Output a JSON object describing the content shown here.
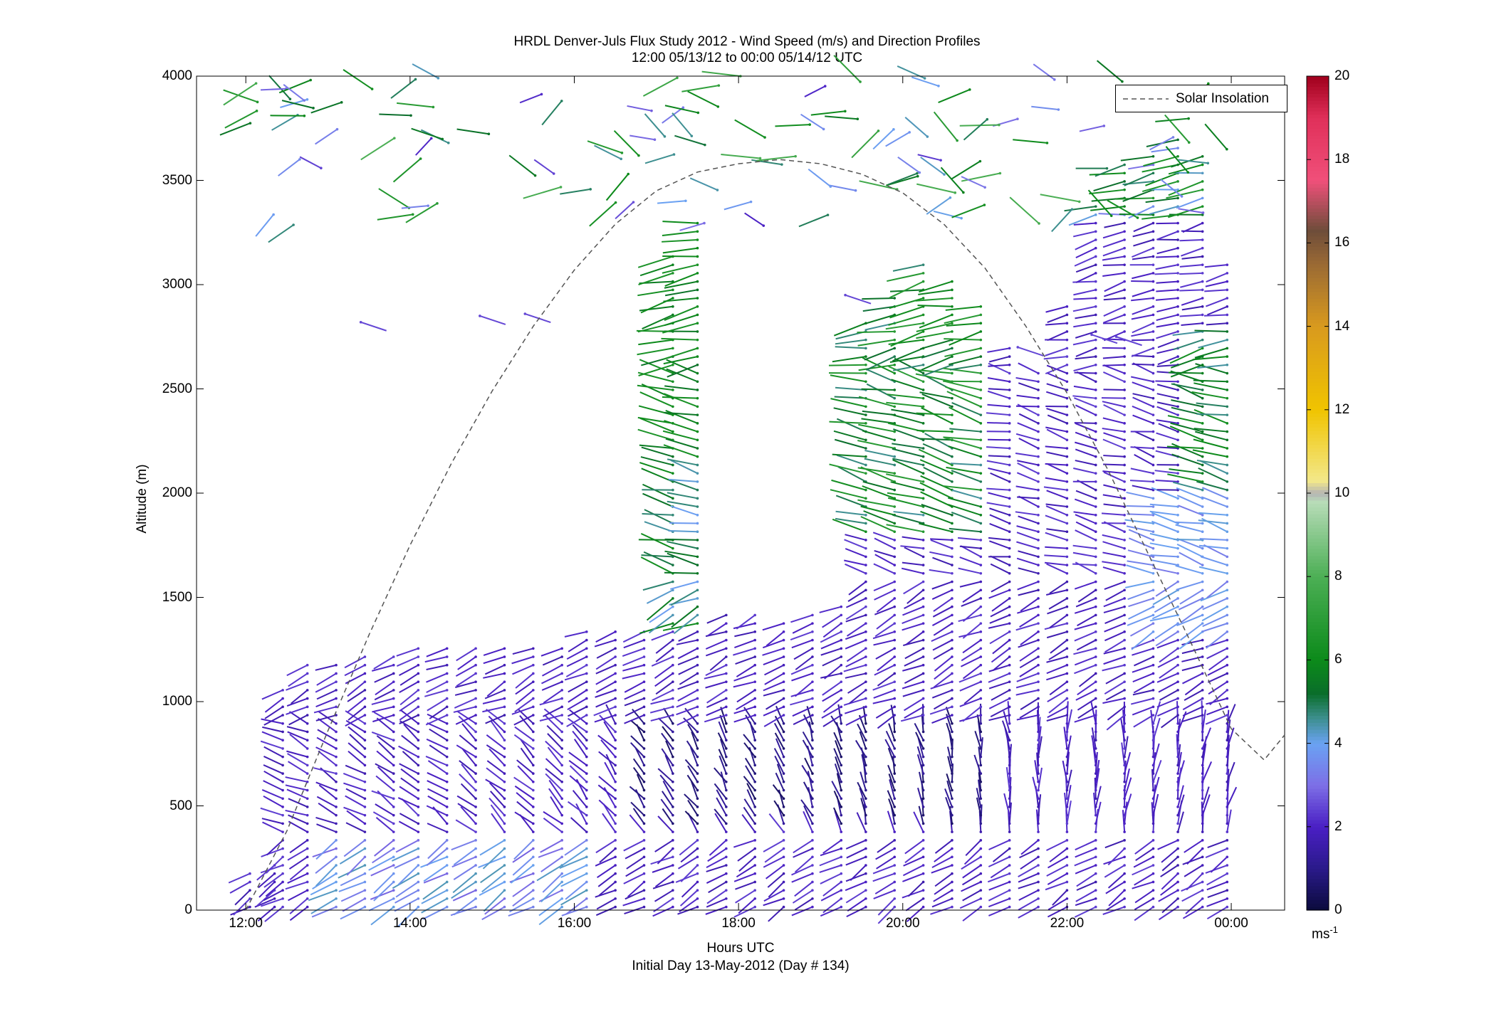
{
  "figure": {
    "title_line1": "HRDL Denver-Juls Flux Study 2012 - Wind Speed (m/s) and Direction Profiles",
    "title_line2": "12:00 05/13/12 to 00:00 05/14/12  UTC",
    "xlabel": "Hours UTC",
    "xlabel2": "Initial Day 13-May-2012 (Day # 134)",
    "ylabel": "Altitude (m)",
    "colorbar_unit": "ms",
    "colorbar_unit_exp": "-1"
  },
  "legend": {
    "label": "Solar Insolation",
    "position": "top-right"
  },
  "chart_data": {
    "type": "line",
    "description_type": "wind-barb profile plot with colorbar",
    "x_axis": {
      "label": "Hours UTC",
      "range_hours": [
        11.4,
        24.65
      ],
      "ticks": [
        12,
        14,
        16,
        18,
        20,
        22,
        24
      ],
      "tick_labels": [
        "12:00",
        "14:00",
        "16:00",
        "18:00",
        "20:00",
        "22:00",
        "00:00"
      ]
    },
    "y_axis": {
      "label": "Altitude (m)",
      "range": [
        0,
        4000
      ],
      "ticks": [
        0,
        500,
        1000,
        1500,
        2000,
        2500,
        3000,
        3500,
        4000
      ],
      "tick_labels": [
        "0",
        "500",
        "1000",
        "1500",
        "2000",
        "2500",
        "3000",
        "3500",
        "4000"
      ]
    },
    "colorbar": {
      "range": [
        0,
        20
      ],
      "ticks": [
        0,
        2,
        4,
        6,
        8,
        10,
        12,
        14,
        16,
        18,
        20
      ],
      "tick_labels": [
        "0",
        "2",
        "4",
        "6",
        "8",
        "10",
        "12",
        "14",
        "16",
        "18",
        "20"
      ],
      "unit": "ms-1",
      "stops": [
        {
          "v": 0,
          "color": "#0b0b3c"
        },
        {
          "v": 1,
          "color": "#2a1a8a"
        },
        {
          "v": 2,
          "color": "#4a1fc4"
        },
        {
          "v": 3,
          "color": "#7d6fe6"
        },
        {
          "v": 4,
          "color": "#6aa2f2"
        },
        {
          "v": 4.6,
          "color": "#3d8f8f"
        },
        {
          "v": 5.2,
          "color": "#0a6e2a"
        },
        {
          "v": 6,
          "color": "#0c8a1a"
        },
        {
          "v": 8,
          "color": "#4caf55"
        },
        {
          "v": 9.8,
          "color": "#b8dcb8"
        },
        {
          "v": 10,
          "color": "#b4b4b4"
        },
        {
          "v": 10.3,
          "color": "#f3e88a"
        },
        {
          "v": 12,
          "color": "#f0c400"
        },
        {
          "v": 14,
          "color": "#d99a1e"
        },
        {
          "v": 15.5,
          "color": "#9a6a34"
        },
        {
          "v": 16.3,
          "color": "#6e4d3a"
        },
        {
          "v": 17.5,
          "color": "#f0507a"
        },
        {
          "v": 19,
          "color": "#e0305a"
        },
        {
          "v": 20,
          "color": "#a0001c"
        }
      ]
    },
    "series": [
      {
        "name": "Solar Insolation",
        "style": "dashed",
        "color": "#555555",
        "x": [
          12.0,
          12.5,
          13.0,
          13.5,
          14.0,
          14.5,
          15.0,
          15.5,
          16.0,
          16.5,
          17.0,
          17.5,
          18.0,
          18.5,
          19.0,
          19.5,
          20.0,
          20.5,
          21.0,
          21.5,
          22.0,
          22.5,
          23.0,
          23.5,
          24.0,
          24.4,
          24.65
        ],
        "y": [
          0,
          380,
          860,
          1320,
          1750,
          2140,
          2490,
          2800,
          3070,
          3290,
          3450,
          3540,
          3580,
          3600,
          3580,
          3530,
          3440,
          3290,
          3080,
          2800,
          2480,
          2110,
          1700,
          1290,
          870,
          720,
          840
        ]
      }
    ],
    "profiles": [
      {
        "time": 12.05,
        "top": 180
      },
      {
        "time": 12.35,
        "top": 250
      },
      {
        "time": 12.45,
        "top": 1080
      },
      {
        "time": 12.75,
        "top": 1190
      },
      {
        "time": 13.1,
        "top": 1200
      },
      {
        "time": 13.45,
        "top": 1220
      },
      {
        "time": 13.8,
        "top": 1250
      },
      {
        "time": 14.1,
        "top": 1270
      },
      {
        "time": 14.45,
        "top": 1260
      },
      {
        "time": 14.8,
        "top": 1280
      },
      {
        "time": 15.15,
        "top": 1290
      },
      {
        "time": 15.5,
        "top": 1290
      },
      {
        "time": 15.85,
        "top": 1290
      },
      {
        "time": 16.15,
        "top": 1360
      },
      {
        "time": 16.5,
        "top": 1360
      },
      {
        "time": 16.85,
        "top": 1340
      },
      {
        "time": 17.2,
        "top": 3150
      },
      {
        "time": 17.5,
        "top": 3300
      },
      {
        "time": 17.85,
        "top": 1440
      },
      {
        "time": 18.2,
        "top": 1440
      },
      {
        "time": 18.55,
        "top": 1400
      },
      {
        "time": 18.9,
        "top": 1450
      },
      {
        "time": 19.25,
        "top": 1480
      },
      {
        "time": 19.55,
        "top": 2850
      },
      {
        "time": 19.9,
        "top": 2950
      },
      {
        "time": 20.25,
        "top": 3100
      },
      {
        "time": 20.6,
        "top": 3050
      },
      {
        "time": 20.95,
        "top": 2900
      },
      {
        "time": 21.3,
        "top": 2700
      },
      {
        "time": 21.65,
        "top": 2600
      },
      {
        "time": 22.0,
        "top": 2900
      },
      {
        "time": 22.35,
        "top": 3400
      },
      {
        "time": 22.7,
        "top": 3600
      },
      {
        "time": 23.05,
        "top": 3650
      },
      {
        "time": 23.35,
        "top": 3700
      },
      {
        "time": 23.65,
        "top": 3650
      },
      {
        "time": 23.95,
        "top": 3100
      }
    ],
    "grid": false
  }
}
